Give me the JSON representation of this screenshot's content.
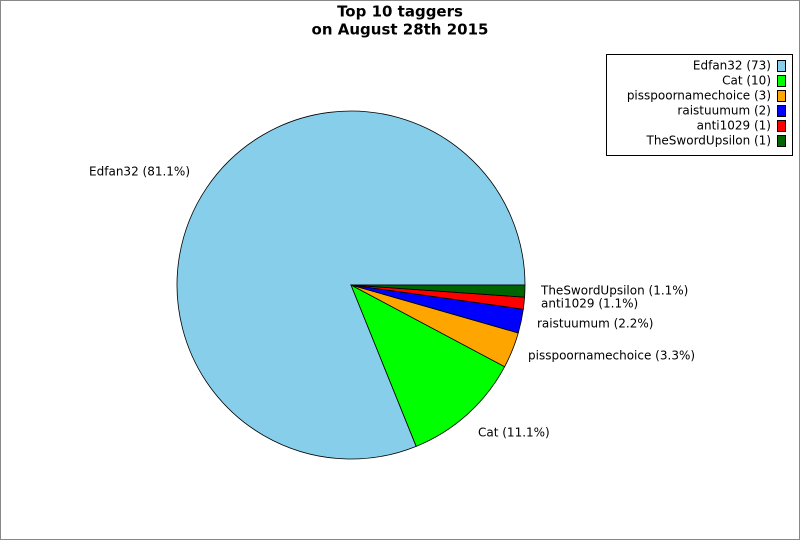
{
  "chart_data": {
    "type": "pie",
    "title": "Top 10 taggers",
    "subtitle": "on August 28th 2015",
    "values": [
      73,
      10,
      3,
      2,
      1,
      1
    ],
    "colors": [
      "#87ceeb",
      "#00ff00",
      "#ffa500",
      "#0000ff",
      "#ff0000",
      "#006400"
    ],
    "legend_labels": [
      "Edfan32 (73)",
      "Cat (10)",
      "pisspoornamechoice (3)",
      "raistuumum (2)",
      "anti1029 (1)",
      "TheSwordUpsilon (1)"
    ],
    "slice_labels": [
      "Edfan32 (81.1%)",
      "Cat (11.1%)",
      "pisspoornamechoice (3.3%)",
      "raistuumum (2.2%)",
      "anti1029 (1.1%)",
      "TheSwordUpsilon (1.1%)"
    ],
    "legend": "upper right"
  }
}
